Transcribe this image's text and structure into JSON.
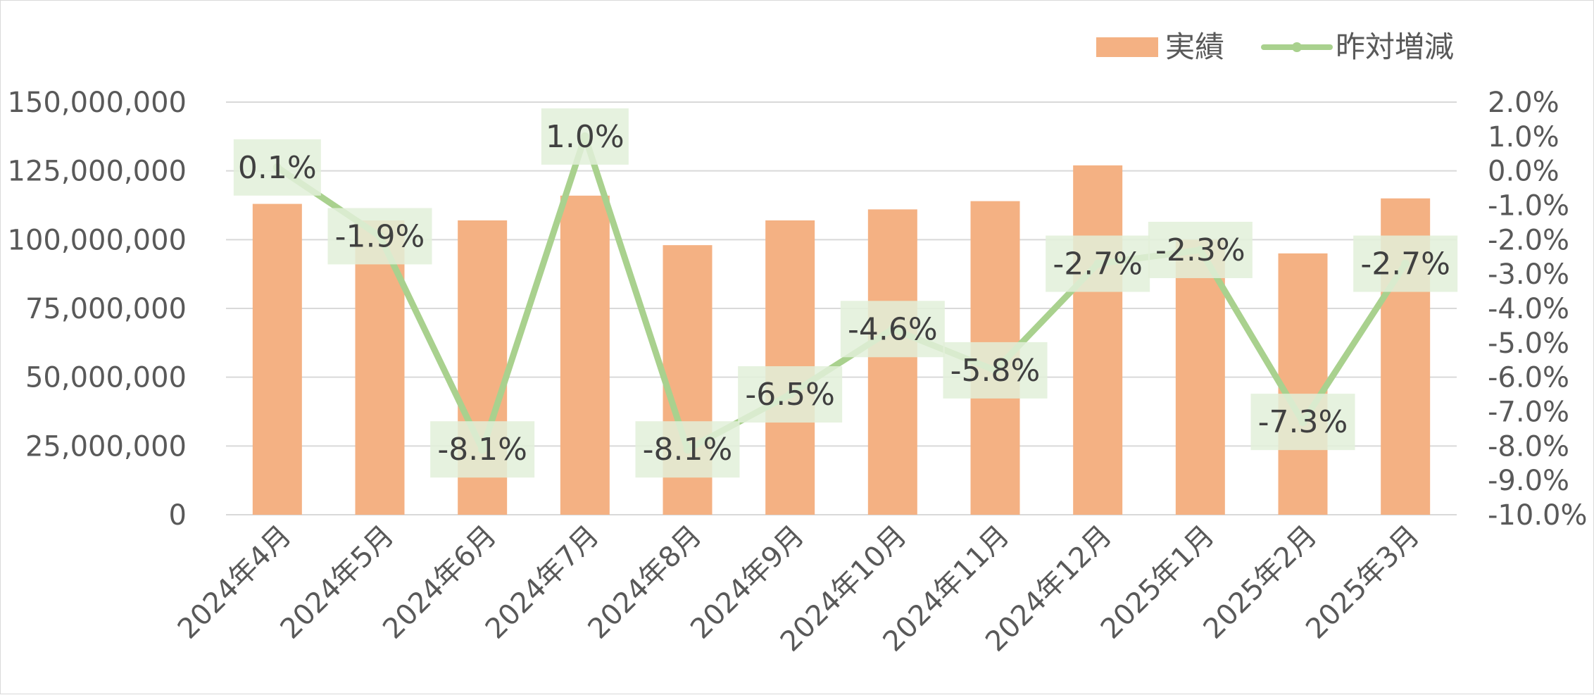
{
  "chart_data": {
    "type": "bar",
    "categories": [
      "2024年4月",
      "2024年5月",
      "2024年6月",
      "2024年7月",
      "2024年8月",
      "2024年9月",
      "2024年10月",
      "2024年11月",
      "2024年12月",
      "2025年1月",
      "2025年2月",
      "2025年3月"
    ],
    "series": [
      {
        "name": "実績",
        "type": "bar",
        "axis": "left",
        "color": "#F4B183",
        "values": [
          113000000,
          107000000,
          107000000,
          116000000,
          98000000,
          107000000,
          111000000,
          114000000,
          127000000,
          100000000,
          95000000,
          115000000
        ]
      },
      {
        "name": "昨対増減",
        "type": "line",
        "axis": "right",
        "color": "#A9D18E",
        "values": [
          0.1,
          -1.9,
          -8.1,
          1.0,
          -8.1,
          -6.5,
          -4.6,
          -5.8,
          -2.7,
          -2.3,
          -7.3,
          -2.7
        ],
        "labels": [
          "0.1%",
          "-1.9%",
          "-8.1%",
          "1.0%",
          "-8.1%",
          "-6.5%",
          "-4.6%",
          "-5.8%",
          "-2.7%",
          "-2.3%",
          "-7.3%",
          "-2.7%"
        ]
      }
    ],
    "y_left": {
      "range": [
        0,
        150000000
      ],
      "ticks": [
        "0",
        "25,000,000",
        "50,000,000",
        "75,000,000",
        "100,000,000",
        "125,000,000",
        "150,000,000"
      ]
    },
    "y_right": {
      "range": [
        -10.0,
        2.0
      ],
      "ticks": [
        "-10.0%",
        "-9.0%",
        "-8.0%",
        "-7.0%",
        "-6.0%",
        "-5.0%",
        "-4.0%",
        "-3.0%",
        "-2.0%",
        "-1.0%",
        "0.0%",
        "1.0%",
        "2.0%"
      ]
    },
    "grid": true,
    "legend_position": "top-right",
    "label_background": "#E2F0D9"
  }
}
